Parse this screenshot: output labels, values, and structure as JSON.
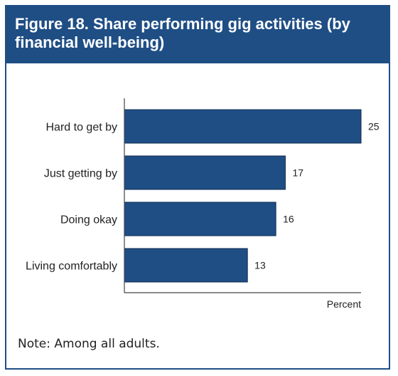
{
  "figure": {
    "title": "Figure 18. Share performing gig activities (by financial well-being)",
    "note": "Note: Among all adults."
  },
  "colors": {
    "header_bg": "#1f4e85",
    "bar_fill": "#1f4e85",
    "bar_stroke": "#0d2a4e"
  },
  "chart_data": {
    "type": "bar",
    "orientation": "horizontal",
    "title": "Figure 18. Share performing gig activities (by financial well-being)",
    "xlabel": "Percent",
    "ylabel": "",
    "categories": [
      "Hard to get by",
      "Just getting by",
      "Doing okay",
      "Living comfortably"
    ],
    "values": [
      25,
      17,
      16,
      13
    ],
    "xlim": [
      0,
      25
    ],
    "grid": false,
    "legend": "none"
  }
}
